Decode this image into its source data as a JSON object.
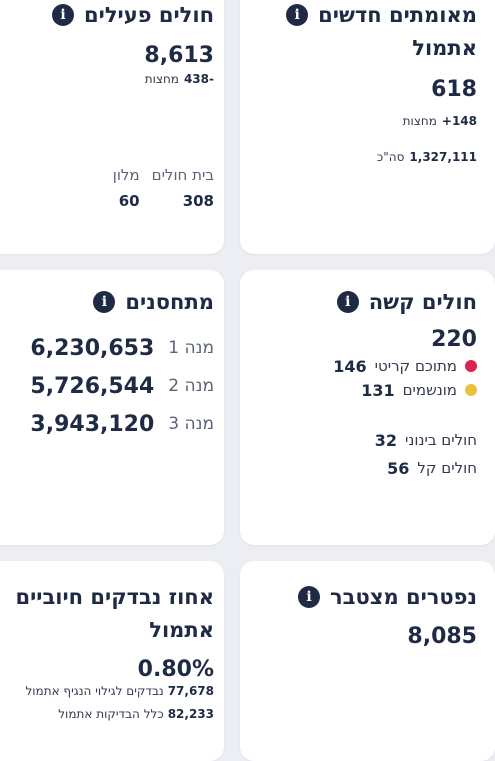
{
  "cards": {
    "new_confirmed": {
      "title_line1": "מאומתים חדשים",
      "title_line2": "אתמול",
      "value": "618",
      "midnight_delta": "148+",
      "midnight_label": "מחצות",
      "total_value": "1,327,111",
      "total_label": "סה\"כ"
    },
    "active_patients": {
      "title": "חולים פעילים",
      "value": "8,613",
      "midnight_delta": "-438",
      "midnight_label": "מחצות",
      "hospital_label": "בית חולים",
      "hospital_value": "308",
      "hotel_label": "מלון",
      "hotel_value": "60"
    },
    "severe": {
      "title": "חולים קשה",
      "value": "220",
      "critical_value": "146",
      "critical_label": "מתוכם קריטי",
      "ventilated_value": "131",
      "ventilated_label": "מונשמים",
      "moderate_label": "חולים בינוני",
      "moderate_value": "32",
      "mild_label": "חולים קל",
      "mild_value": "56",
      "colors": {
        "critical": "#e0214d",
        "ventilated": "#e8c23a"
      }
    },
    "vaccinated": {
      "title": "מתחסנים",
      "doses": [
        {
          "label": "מנה 1",
          "value": "6,230,653"
        },
        {
          "label": "מנה 2",
          "value": "5,726,544"
        },
        {
          "label": "מנה 3",
          "value": "3,943,120"
        }
      ]
    },
    "deceased": {
      "title": "נפטרים מצטבר",
      "value": "8,085"
    },
    "positive_rate": {
      "title_line1": "אחוז נבדקים חיוביים",
      "title_line2": "אתמול",
      "value": "0.80%",
      "tested_value": "77,678",
      "tested_label": "נבדקים לגילוי הנגיף אתמול",
      "all_tests_value": "82,233",
      "all_tests_label": "כלל הבדיקות אתמול"
    }
  },
  "icons": {
    "info": "i"
  }
}
